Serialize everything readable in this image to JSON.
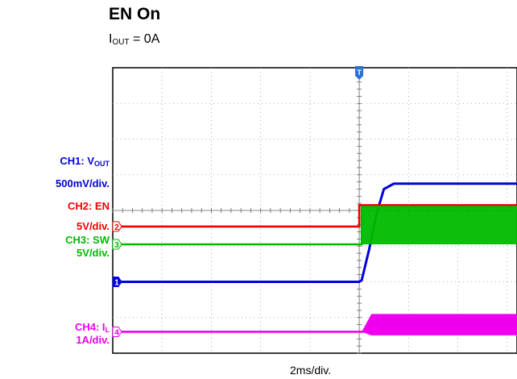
{
  "title": "EN On",
  "subtitle": {
    "main": "I",
    "sub": "OUT",
    "rest": " = 0A"
  },
  "channel_labels": [
    {
      "name_main": "CH1: V",
      "name_sub": "OUT",
      "scale": "500mV/div.",
      "color": "#0000dd"
    },
    {
      "name_main": "CH2: EN",
      "name_sub": "",
      "scale": "5V/div.",
      "color": "#ee0000"
    },
    {
      "name_main": "CH3: SW",
      "name_sub": "",
      "scale": "5V/div.",
      "color": "#00bb00"
    },
    {
      "name_main": "CH4: I",
      "name_sub": "L",
      "scale": "1A/div.",
      "color": "#ee00ee"
    }
  ],
  "chart_data": {
    "type": "line",
    "xlabel": "2ms/div.",
    "trigger_marker": "T",
    "x_divisions": 10,
    "y_divisions": 8,
    "x_visible_divisions": 8.2,
    "trigger_division": 5.0,
    "grid": true,
    "series": [
      {
        "marker": "1",
        "color": "#0000dd",
        "ground_div": 2.0,
        "points": [
          [
            0,
            0
          ],
          [
            5.0,
            0
          ],
          [
            5.05,
            0.05
          ],
          [
            5.2,
            0.9
          ],
          [
            5.35,
            1.9
          ],
          [
            5.5,
            2.6
          ],
          [
            5.7,
            2.75
          ],
          [
            8.2,
            2.75
          ]
        ]
      },
      {
        "marker": "2",
        "color": "#ee0000",
        "ground_div": 3.55,
        "points": [
          [
            0,
            0
          ],
          [
            5.0,
            0
          ],
          [
            5.0,
            0.6
          ],
          [
            8.2,
            0.6
          ]
        ]
      },
      {
        "marker": "3",
        "color": "#00bb00",
        "ground_div": 3.05,
        "points": [
          [
            0,
            0
          ],
          [
            5.05,
            0
          ],
          [
            5.05,
            1.05
          ],
          [
            8.2,
            1.05
          ]
        ],
        "switching_from": 5.05,
        "switching_high": 1.05
      },
      {
        "marker": "4",
        "color": "#ee00ee",
        "ground_div": 0.6,
        "points": [
          [
            0,
            0
          ],
          [
            8.2,
            0
          ]
        ],
        "ripple_from": 5.05,
        "ripple_amplitude": 0.5
      }
    ]
  }
}
